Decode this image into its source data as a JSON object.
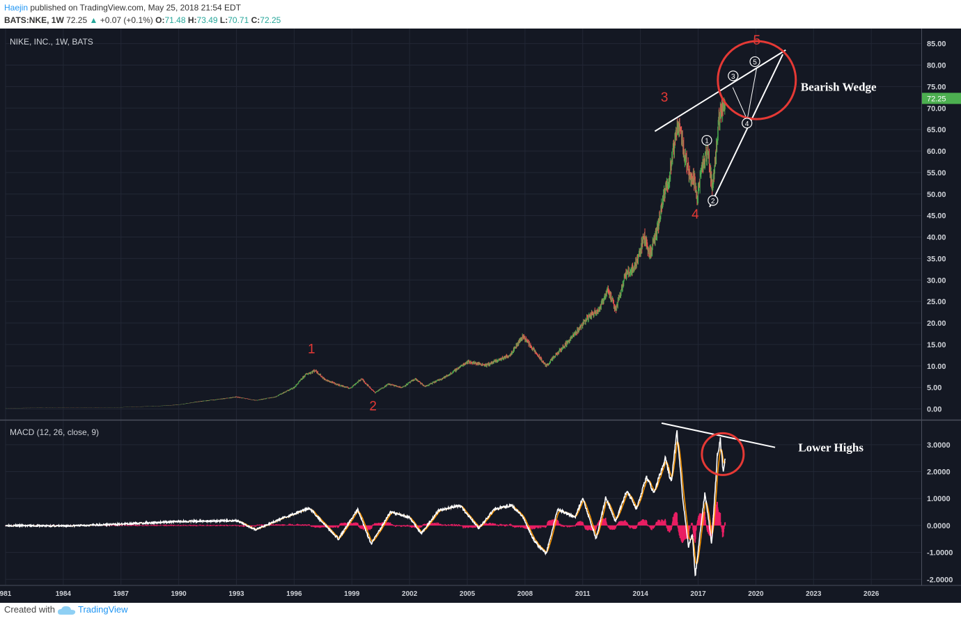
{
  "header": {
    "user": "Haejin",
    "published": "published on TradingView.com, May 25, 2018 21:54 EDT",
    "symbol": "BATS:NKE, 1W",
    "last": "72.25",
    "change": "+0.07 (+0.1%)",
    "open_label": "O:",
    "open": "71.48",
    "high_label": "H:",
    "high": "73.49",
    "low_label": "L:",
    "low": "70.71",
    "close_label": "C:",
    "close": "72.25"
  },
  "footer": {
    "created_with": "Created with",
    "brand": "TradingView"
  },
  "colors": {
    "background": "#141823",
    "grid": "#222735",
    "axis_text": "#cfd2d8",
    "up_candle": "#4caf50",
    "down_candle": "#ef5350",
    "price_tag": "#4caf50",
    "macd": "#ffffff",
    "signal": "#ff9800",
    "histogram": "#e91e63",
    "wave_label": "#e53935",
    "circle": "#e53935",
    "annotation": "#ffffff"
  },
  "chart_data": [
    {
      "type": "candlestick",
      "title": "NIKE, INC., 1W, BATS",
      "x_ticks": [
        "981",
        "1984",
        "1987",
        "1990",
        "1993",
        "1996",
        "1999",
        "2002",
        "2005",
        "2008",
        "2011",
        "2014",
        "2017",
        "2020",
        "2023",
        "2026"
      ],
      "x_range": [
        1981.0,
        2028.6
      ],
      "y_ticks": [
        "85.00",
        "80.00",
        "75.00",
        "70.00",
        "65.00",
        "60.00",
        "55.00",
        "50.00",
        "45.00",
        "40.00",
        "35.00",
        "30.00",
        "25.00",
        "20.00",
        "15.00",
        "10.00",
        "5.00",
        "0.00"
      ],
      "ylim": [
        -2.5,
        88.5
      ],
      "last_price": {
        "value": 72.25,
        "label": "72.25"
      },
      "price_path": [
        [
          1981.0,
          0.2
        ],
        [
          1983.0,
          0.3
        ],
        [
          1985.0,
          0.3
        ],
        [
          1987.0,
          0.4
        ],
        [
          1989.0,
          0.7
        ],
        [
          1990.0,
          1.0
        ],
        [
          1991.0,
          1.7
        ],
        [
          1992.0,
          2.2
        ],
        [
          1993.0,
          2.8
        ],
        [
          1994.0,
          2.0
        ],
        [
          1995.0,
          2.8
        ],
        [
          1996.0,
          5.0
        ],
        [
          1996.6,
          8.0
        ],
        [
          1997.1,
          9.0
        ],
        [
          1997.6,
          6.8
        ],
        [
          1998.3,
          5.6
        ],
        [
          1998.9,
          4.8
        ],
        [
          1999.5,
          7.0
        ],
        [
          2000.2,
          3.8
        ],
        [
          2000.9,
          5.8
        ],
        [
          2001.6,
          5.0
        ],
        [
          2002.3,
          7.0
        ],
        [
          2002.8,
          5.2
        ],
        [
          2004.0,
          7.8
        ],
        [
          2005.0,
          11.0
        ],
        [
          2006.0,
          10.2
        ],
        [
          2007.2,
          12.5
        ],
        [
          2007.9,
          17.0
        ],
        [
          2008.4,
          14.0
        ],
        [
          2009.1,
          10.0
        ],
        [
          2009.8,
          13.5
        ],
        [
          2010.6,
          17.5
        ],
        [
          2011.2,
          21.0
        ],
        [
          2011.9,
          23.5
        ],
        [
          2012.3,
          28.0
        ],
        [
          2012.7,
          23.0
        ],
        [
          2013.2,
          31.0
        ],
        [
          2013.7,
          33.0
        ],
        [
          2014.2,
          40.0
        ],
        [
          2014.5,
          36.0
        ],
        [
          2014.9,
          42.0
        ],
        [
          2015.2,
          49.0
        ],
        [
          2015.5,
          54.0
        ],
        [
          2015.9,
          65.0
        ],
        [
          2016.0,
          67.0
        ],
        [
          2016.3,
          59.0
        ],
        [
          2016.5,
          55.5
        ],
        [
          2016.8,
          53.0
        ],
        [
          2016.95,
          49.5
        ],
        [
          2017.2,
          56.0
        ],
        [
          2017.5,
          60.0
        ],
        [
          2017.75,
          51.0
        ],
        [
          2018.0,
          64.0
        ],
        [
          2018.2,
          70.0
        ],
        [
          2018.4,
          72.25
        ]
      ],
      "wave_labels": [
        {
          "label": "1",
          "x": 1996.9,
          "y": 13.0
        },
        {
          "label": "2",
          "x": 2000.1,
          "y": -0.3
        },
        {
          "label": "3",
          "x": 2015.25,
          "y": 71.5
        },
        {
          "label": "4",
          "x": 2016.85,
          "y": 44.3
        },
        {
          "label": "5",
          "x": 2020.05,
          "y": 84.8
        }
      ],
      "sub_wave_labels": [
        {
          "label": "1",
          "x": 2017.45,
          "y": 62.5
        },
        {
          "label": "2",
          "x": 2017.77,
          "y": 48.5
        },
        {
          "label": "3",
          "x": 2018.82,
          "y": 77.5
        },
        {
          "label": "4",
          "x": 2019.54,
          "y": 66.5
        },
        {
          "label": "5",
          "x": 2019.95,
          "y": 80.8
        }
      ],
      "trendlines": [
        {
          "from": [
            2014.75,
            64.6
          ],
          "to": [
            2021.55,
            83.5
          ]
        },
        {
          "from": [
            2017.6,
            47.0
          ],
          "to": [
            2021.4,
            82.5
          ]
        }
      ],
      "wave_path": [
        [
          2018.8,
          74.8
        ],
        [
          2019.55,
          67.3
        ],
        [
          2020.05,
          79.5
        ]
      ],
      "highlight": {
        "x": 2020.05,
        "y": 76.5
      },
      "annotation": {
        "text": "Bearish Wedge",
        "x": 2024.3,
        "y": 75.0
      }
    },
    {
      "type": "line",
      "title": "MACD (12, 26, close, 9)",
      "y_ticks": [
        "3.0000",
        "2.0000",
        "1.0000",
        "0.0000",
        "-1.0000",
        "-2.0000"
      ],
      "ylim": [
        -2.2,
        3.9
      ],
      "macd": [
        [
          1981.0,
          0.0
        ],
        [
          1984.0,
          -0.02
        ],
        [
          1987.0,
          0.05
        ],
        [
          1990.0,
          0.15
        ],
        [
          1993.0,
          0.18
        ],
        [
          1994.0,
          -0.15
        ],
        [
          1995.5,
          0.3
        ],
        [
          1996.8,
          0.65
        ],
        [
          1997.5,
          0.1
        ],
        [
          1998.3,
          -0.5
        ],
        [
          1999.3,
          0.6
        ],
        [
          2000.0,
          -0.7
        ],
        [
          2001.0,
          0.5
        ],
        [
          2002.0,
          0.3
        ],
        [
          2002.6,
          -0.3
        ],
        [
          2003.5,
          0.55
        ],
        [
          2004.6,
          0.75
        ],
        [
          2005.6,
          -0.1
        ],
        [
          2006.4,
          0.6
        ],
        [
          2007.3,
          0.75
        ],
        [
          2007.9,
          0.3
        ],
        [
          2008.5,
          -0.6
        ],
        [
          2009.1,
          -1.05
        ],
        [
          2009.7,
          0.6
        ],
        [
          2010.6,
          0.3
        ],
        [
          2011.0,
          1.0
        ],
        [
          2011.7,
          -0.5
        ],
        [
          2012.2,
          1.05
        ],
        [
          2012.7,
          0.15
        ],
        [
          2013.3,
          1.3
        ],
        [
          2013.8,
          0.6
        ],
        [
          2014.3,
          1.8
        ],
        [
          2014.7,
          1.2
        ],
        [
          2015.3,
          2.5
        ],
        [
          2015.6,
          1.6
        ],
        [
          2015.9,
          3.5
        ],
        [
          2016.2,
          1.0
        ],
        [
          2016.5,
          -0.8
        ],
        [
          2016.7,
          -0.3
        ],
        [
          2016.85,
          -1.9
        ],
        [
          2017.1,
          -0.3
        ],
        [
          2017.35,
          1.2
        ],
        [
          2017.55,
          0.2
        ],
        [
          2017.7,
          -0.7
        ],
        [
          2018.0,
          2.6
        ],
        [
          2018.15,
          3.2
        ],
        [
          2018.3,
          2.0
        ],
        [
          2018.4,
          2.5
        ]
      ],
      "trendline": {
        "from": [
          2015.1,
          3.8
        ],
        "to": [
          2021.0,
          2.9
        ]
      },
      "highlight": {
        "x": 2018.28,
        "y": 2.65
      },
      "annotation": {
        "text": "Lower Highs",
        "x": 2023.9,
        "y": 2.9
      }
    }
  ]
}
